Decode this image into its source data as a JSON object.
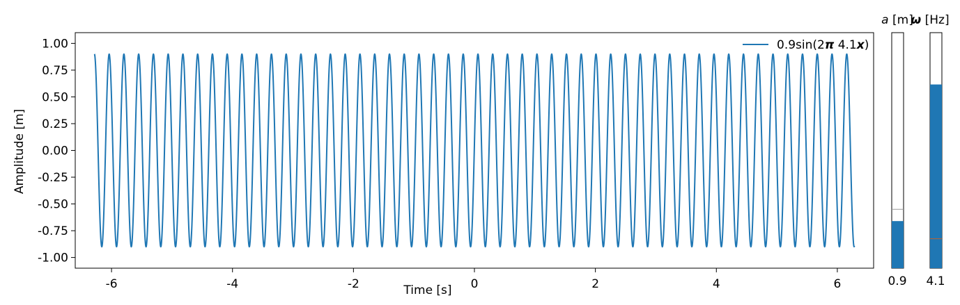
{
  "chart_data": {
    "type": "line",
    "xlabel": "Time [s]",
    "ylabel": "Amplitude [m]",
    "xlim": [
      -6.6,
      6.6
    ],
    "ylim": [
      -1.1,
      1.1
    ],
    "x_range": [
      -6.283,
      6.283
    ],
    "x_ticks": [
      -6,
      -4,
      -2,
      0,
      2,
      4,
      6
    ],
    "x_tick_labels": [
      "-6",
      "-4",
      "-2",
      "0",
      "2",
      "4",
      "6"
    ],
    "y_ticks": [
      1.0,
      0.75,
      0.5,
      0.25,
      0.0,
      -0.25,
      -0.5,
      -0.75,
      -1.0
    ],
    "y_tick_labels": [
      "1.00",
      "0.75",
      "0.50",
      "0.25",
      "0.00",
      "-0.25",
      "-0.50",
      "-0.75",
      "-1.00"
    ],
    "grid": false,
    "legend_position": "top-right",
    "series": [
      {
        "name": "0.9sin(2π 4.1x)",
        "function": "sin",
        "amplitude": 0.9,
        "frequency": 4.1,
        "color": "#1f77b4"
      }
    ]
  },
  "legend": {
    "prefix": "0.9sin(2",
    "pi": "π",
    "freq": " 4.1",
    "var": "x",
    "suffix": ")"
  },
  "sliders": [
    {
      "id": "amplitude",
      "symbol": "a",
      "unit": " [m]",
      "value": 0.9,
      "value_label": "0.9",
      "fill_fraction": 0.2,
      "initial_fraction": 0.25,
      "fill_color": "#1f77b4",
      "initial_marker_color": "#999999"
    },
    {
      "id": "frequency",
      "symbol": "ω",
      "unit": " [Hz]",
      "value": 4.1,
      "value_label": "4.1",
      "fill_fraction": 0.78,
      "initial_fraction": 0.125,
      "fill_color": "#1f77b4",
      "initial_marker_color": "#c0622c"
    }
  ]
}
